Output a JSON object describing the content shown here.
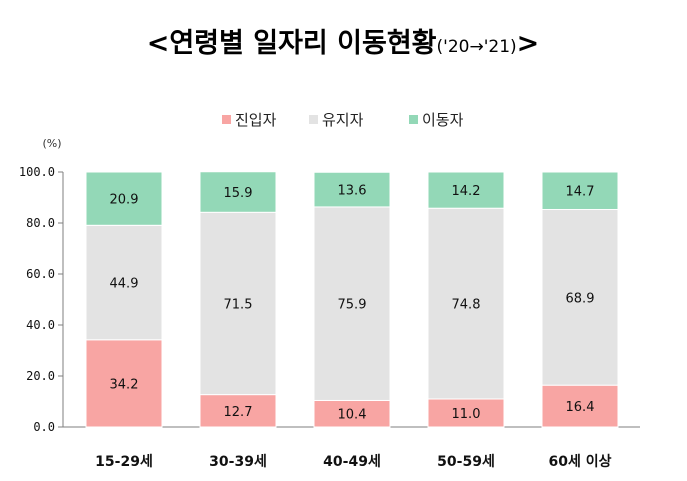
{
  "title": {
    "main": "<연령별 일자리 이동현황",
    "sub": "('20→'21)",
    "close": ">"
  },
  "chart_data": {
    "type": "bar",
    "stacked": true,
    "unit": "(%)",
    "categories": [
      "15-29세",
      "30-39세",
      "40-49세",
      "50-59세",
      "60세 이상"
    ],
    "series": [
      {
        "name": "진입자",
        "color": "#f8a5a3",
        "values": [
          34.2,
          12.7,
          10.4,
          11.0,
          16.4
        ]
      },
      {
        "name": "유지자",
        "color": "#e3e3e3",
        "values": [
          44.9,
          71.5,
          75.9,
          74.8,
          68.9
        ]
      },
      {
        "name": "이동자",
        "color": "#93d8b7",
        "values": [
          20.9,
          15.9,
          13.6,
          14.2,
          14.7
        ]
      }
    ],
    "yticks": [
      "100.0",
      "80.0",
      "60.0",
      "40.0",
      "20.0",
      "0.0"
    ],
    "ylim": [
      0,
      100
    ],
    "legend_position": "top-center",
    "grid": false
  }
}
